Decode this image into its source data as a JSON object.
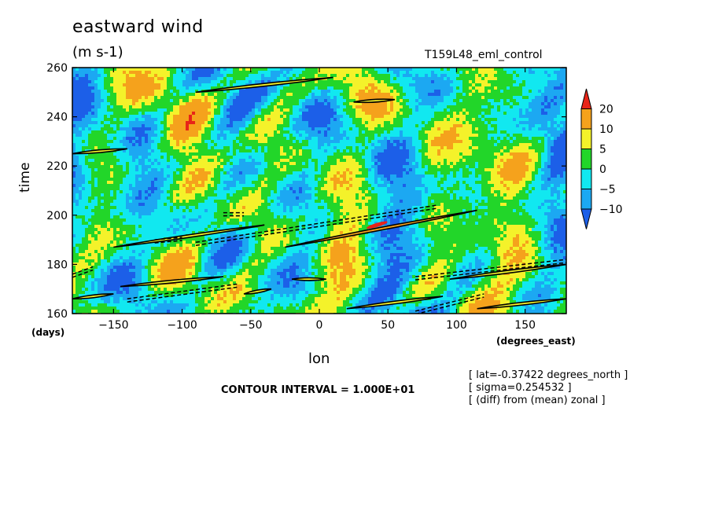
{
  "chart_data": {
    "type": "heatmap",
    "title": "eastward wind",
    "units": "(m s-1)",
    "run_label": "T159L48_eml_control",
    "xlabel": "lon",
    "x_unit": "(degrees_east)",
    "ylabel": "time",
    "y_unit": "(days)",
    "xlim": [
      -180,
      180
    ],
    "ylim": [
      160,
      260
    ],
    "x_ticks": [
      -150,
      -100,
      -50,
      0,
      50,
      100,
      150
    ],
    "y_ticks": [
      160,
      180,
      200,
      220,
      240,
      260
    ],
    "colorbar": {
      "levels": [
        -10,
        -5,
        0,
        5,
        10,
        20
      ],
      "colors": [
        "#1c5fe8",
        "#1ca8f2",
        "#11e8f0",
        "#22d629",
        "#f4f22a",
        "#f5a21c",
        "#e82418"
      ],
      "extend": "both"
    },
    "contour_interval": "CONTOUR INTERVAL = 1.000E+01",
    "info_lines": [
      "[ lat=-0.37422 degrees_north ]",
      "[ sigma=0.254532 ]",
      "[ (diff) from (mean) zonal ]"
    ],
    "contour_features": [
      {
        "kind": "solid",
        "lon_start": -90,
        "lon_end": 10,
        "t_start": 250,
        "t_end": 256
      },
      {
        "kind": "solid",
        "lon_start": -25,
        "lon_end": 115,
        "t_start": 187,
        "t_end": 202
      },
      {
        "kind": "solid",
        "lon_start": -150,
        "lon_end": -40,
        "t_start": 187,
        "t_end": 196
      },
      {
        "kind": "solid",
        "lon_start": -180,
        "lon_end": -140,
        "t_start": 225,
        "t_end": 227
      },
      {
        "kind": "solid",
        "lon_start": -145,
        "lon_end": -70,
        "t_start": 171,
        "t_end": 175
      },
      {
        "kind": "solid",
        "lon_start": -180,
        "lon_end": -150,
        "t_start": 166,
        "t_end": 168
      },
      {
        "kind": "solid",
        "lon_start": 20,
        "lon_end": 90,
        "t_start": 162,
        "t_end": 167
      },
      {
        "kind": "solid",
        "lon_start": 95,
        "lon_end": 180,
        "t_start": 174,
        "t_end": 180
      },
      {
        "kind": "solid",
        "lon_start": 115,
        "lon_end": 180,
        "t_start": 162,
        "t_end": 166
      },
      {
        "kind": "solid",
        "lon_start": -55,
        "lon_end": -35,
        "t_start": 168,
        "t_end": 170
      },
      {
        "kind": "solid",
        "lon_start": -20,
        "lon_end": 5,
        "t_start": 174,
        "t_end": 174
      },
      {
        "kind": "solid",
        "lon_start": 25,
        "lon_end": 55,
        "t_start": 246,
        "t_end": 247
      },
      {
        "kind": "dashed",
        "lon_start": -90,
        "lon_end": 85,
        "t_start": 189,
        "t_end": 204
      },
      {
        "kind": "dashed",
        "lon_start": -140,
        "lon_end": -60,
        "t_start": 166,
        "t_end": 172
      },
      {
        "kind": "dashed",
        "lon_start": 70,
        "lon_end": 120,
        "t_start": 161,
        "t_end": 168
      },
      {
        "kind": "dashed",
        "lon_start": 70,
        "lon_end": 180,
        "t_start": 175,
        "t_end": 182
      },
      {
        "kind": "dashed",
        "lon_start": -180,
        "lon_end": -165,
        "t_start": 176,
        "t_end": 179
      },
      {
        "kind": "dashed",
        "lon_start": -120,
        "lon_end": -100,
        "t_start": 190,
        "t_end": 191
      },
      {
        "kind": "dashed",
        "lon_start": -70,
        "lon_end": -55,
        "t_start": 201,
        "t_end": 201
      }
    ]
  }
}
